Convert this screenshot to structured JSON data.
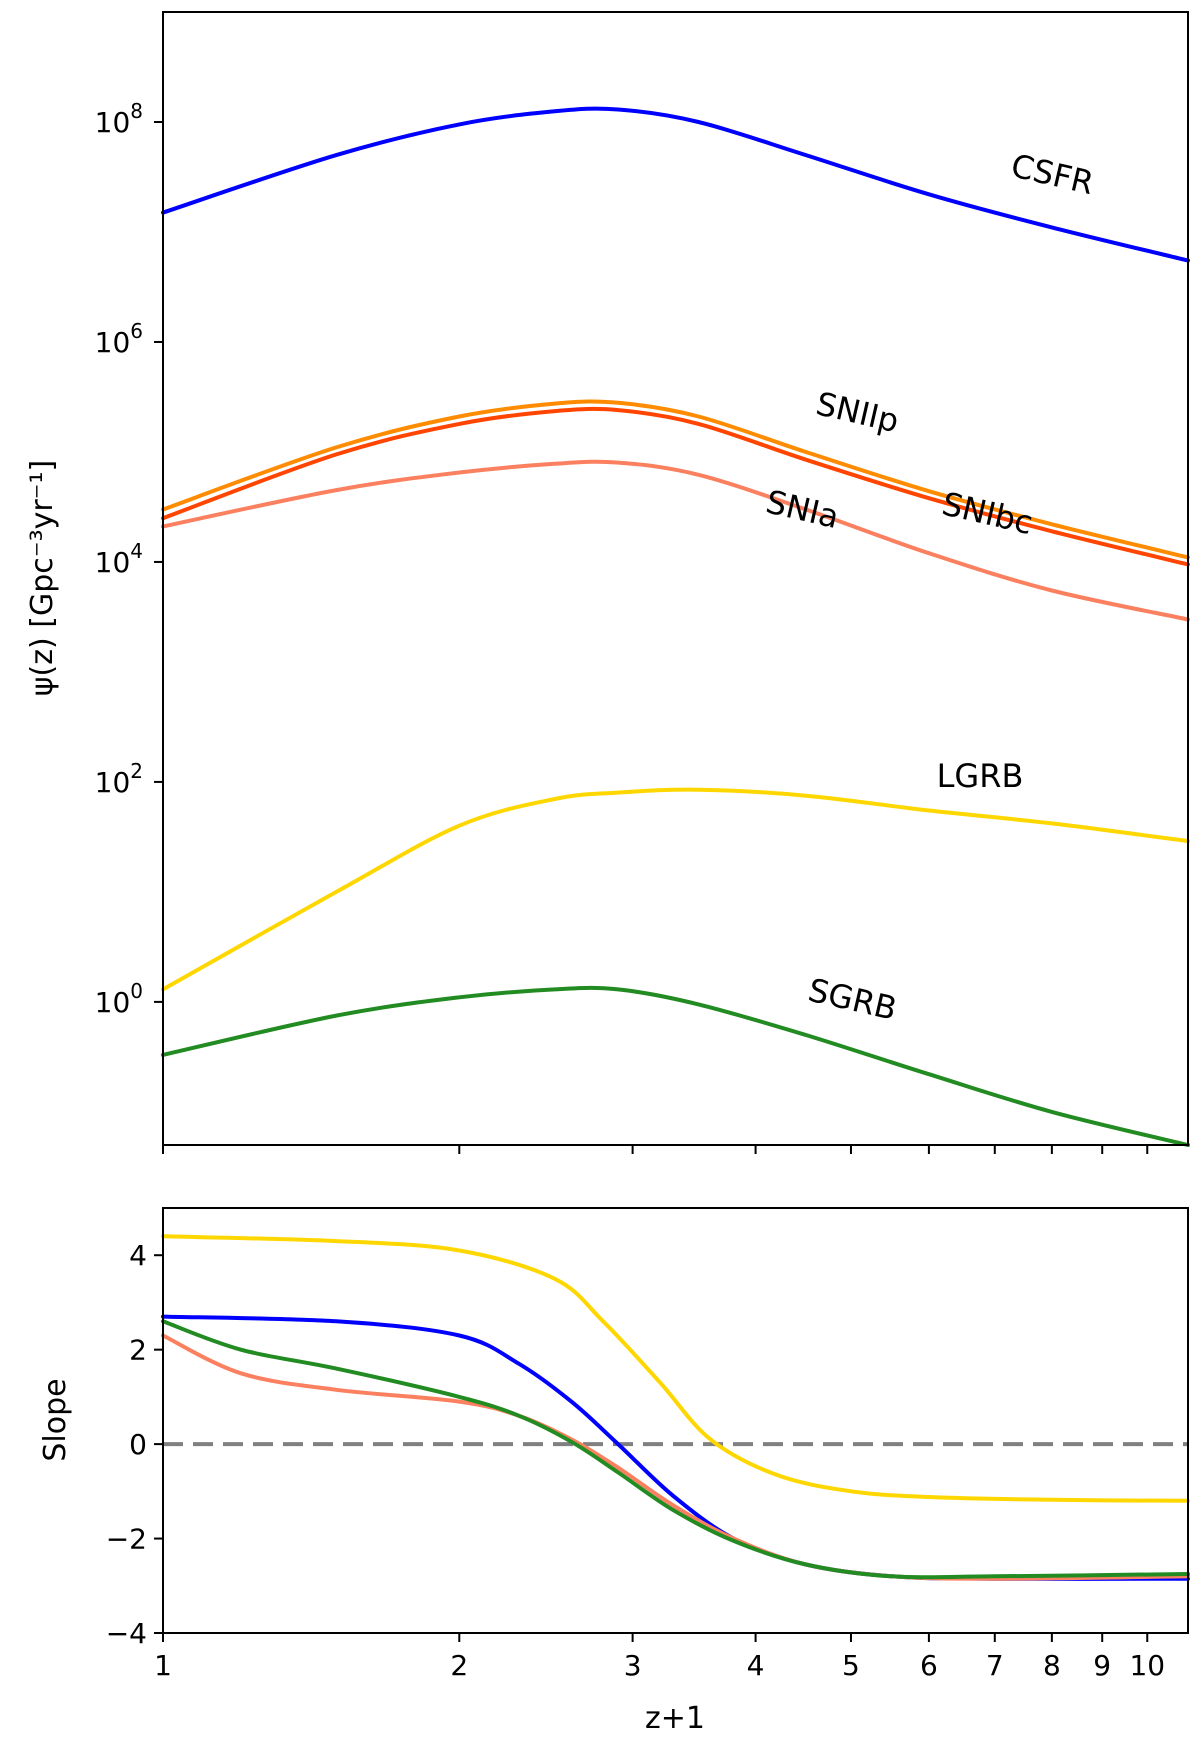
{
  "chart_data": [
    {
      "type": "line",
      "panel": "top",
      "x_scale": "log",
      "y_scale": "log",
      "xlim": [
        1,
        11
      ],
      "ylim": [
        0.05,
        1000000000
      ],
      "ylabel": "ψ(z) [Gpc⁻³yr⁻¹]",
      "ytick_labels": [
        {
          "value": 1,
          "base": "10",
          "exp": "0"
        },
        {
          "value": 100,
          "base": "10",
          "exp": "2"
        },
        {
          "value": 10000,
          "base": "10",
          "exp": "4"
        },
        {
          "value": 1000000,
          "base": "10",
          "exp": "6"
        },
        {
          "value": 100000000,
          "base": "10",
          "exp": "8"
        }
      ],
      "series": [
        {
          "name": "CSFR",
          "label": "CSFR",
          "color": "#0000ff",
          "x": [
            1.0,
            1.5,
            2.0,
            2.5,
            2.9,
            3.5,
            4.5,
            6.0,
            8.0,
            11.0
          ],
          "values": [
            15000000,
            50000000,
            95000000,
            125000000,
            130000000,
            100000000,
            50000000,
            22000000,
            11000000,
            5500000
          ]
        },
        {
          "name": "SNIIp",
          "label": "SNIIp",
          "color": "#ff8c00",
          "x": [
            1.0,
            1.5,
            2.0,
            2.5,
            2.9,
            3.5,
            4.5,
            6.0,
            8.0,
            11.0
          ],
          "values": [
            30000,
            110000,
            210000,
            275000,
            280000,
            210000,
            100000,
            44000,
            22000,
            11000
          ]
        },
        {
          "name": "SNIbc",
          "label": "SNIbc",
          "color": "#ff4500",
          "x": [
            1.0,
            1.5,
            2.0,
            2.5,
            2.9,
            3.5,
            4.5,
            6.0,
            8.0,
            11.0
          ],
          "values": [
            25000,
            95000,
            180000,
            235000,
            240000,
            180000,
            85000,
            38000,
            19000,
            9500
          ]
        },
        {
          "name": "SNIa",
          "label": "SNIa",
          "color": "#fa8060",
          "x": [
            1.0,
            1.5,
            2.0,
            2.5,
            2.9,
            3.5,
            4.5,
            6.0,
            8.0,
            11.0
          ],
          "values": [
            21000,
            45000,
            65000,
            78000,
            80000,
            62000,
            30000,
            12000,
            5500,
            3000
          ]
        },
        {
          "name": "LGRB",
          "label": "LGRB",
          "color": "#ffd700",
          "x": [
            1.0,
            1.5,
            2.0,
            2.5,
            2.9,
            3.5,
            4.5,
            6.0,
            8.0,
            11.0
          ],
          "values": [
            1.3,
            10,
            40,
            70,
            80,
            85,
            75,
            55,
            42,
            29
          ]
        },
        {
          "name": "SGRB",
          "label": "SGRB",
          "color": "#228b22",
          "x": [
            1.0,
            1.5,
            2.0,
            2.5,
            2.9,
            3.5,
            4.5,
            6.0,
            8.0,
            11.0
          ],
          "values": [
            0.33,
            0.75,
            1.1,
            1.3,
            1.3,
            0.95,
            0.5,
            0.22,
            0.1,
            0.05
          ]
        }
      ]
    },
    {
      "type": "line",
      "panel": "bottom",
      "x_scale": "log",
      "xlim": [
        1,
        11
      ],
      "ylim": [
        -4,
        5
      ],
      "ylabel": "Slope",
      "xlabel": "z+1",
      "ytick_labels": [
        {
          "value": -4,
          "label": "−4"
        },
        {
          "value": -2,
          "label": "−2"
        },
        {
          "value": 0,
          "label": "0"
        },
        {
          "value": 2,
          "label": "2"
        },
        {
          "value": 4,
          "label": "4"
        }
      ],
      "xtick_labels": [
        {
          "value": 1,
          "label": "1"
        },
        {
          "value": 2,
          "label": "2"
        },
        {
          "value": 3,
          "label": "3"
        },
        {
          "value": 4,
          "label": "4"
        },
        {
          "value": 5,
          "label": "5"
        },
        {
          "value": 6,
          "label": "6"
        },
        {
          "value": 7,
          "label": "7"
        },
        {
          "value": 8,
          "label": "8"
        },
        {
          "value": 9,
          "label": "9"
        },
        {
          "value": 10,
          "label": "10"
        }
      ],
      "reference_line": {
        "value": 0,
        "color": "#808080",
        "style": "dashed"
      },
      "series": [
        {
          "name": "LGRB",
          "color": "#ffd700",
          "x": [
            1.0,
            1.5,
            2.0,
            2.5,
            2.8,
            3.2,
            3.6,
            4.2,
            5.0,
            6.0,
            8.0,
            11.0
          ],
          "values": [
            4.4,
            4.3,
            4.1,
            3.5,
            2.6,
            1.3,
            0.1,
            -0.65,
            -1.0,
            -1.12,
            -1.18,
            -1.2
          ]
        },
        {
          "name": "CSFR",
          "color": "#0000ff",
          "x": [
            1.0,
            1.5,
            2.0,
            2.3,
            2.6,
            2.9,
            3.3,
            3.8,
            4.5,
            5.5,
            7.0,
            11.0
          ],
          "values": [
            2.7,
            2.6,
            2.3,
            1.7,
            0.9,
            0.0,
            -1.1,
            -2.0,
            -2.55,
            -2.8,
            -2.85,
            -2.85
          ]
        },
        {
          "name": "SNIa",
          "color": "#fa8060",
          "x": [
            1.0,
            1.2,
            1.5,
            2.0,
            2.3,
            2.6,
            2.9,
            3.3,
            3.8,
            4.5,
            5.5,
            7.0,
            11.0
          ],
          "values": [
            2.3,
            1.5,
            1.15,
            0.9,
            0.6,
            0.1,
            -0.5,
            -1.3,
            -2.0,
            -2.55,
            -2.8,
            -2.85,
            -2.8
          ]
        },
        {
          "name": "SGRB",
          "color": "#228b22",
          "x": [
            1.0,
            1.2,
            1.5,
            2.0,
            2.3,
            2.6,
            2.9,
            3.3,
            3.8,
            4.5,
            5.5,
            7.0,
            11.0
          ],
          "values": [
            2.6,
            2.0,
            1.6,
            1.0,
            0.6,
            0.05,
            -0.6,
            -1.4,
            -2.05,
            -2.55,
            -2.8,
            -2.8,
            -2.75
          ]
        }
      ]
    }
  ]
}
